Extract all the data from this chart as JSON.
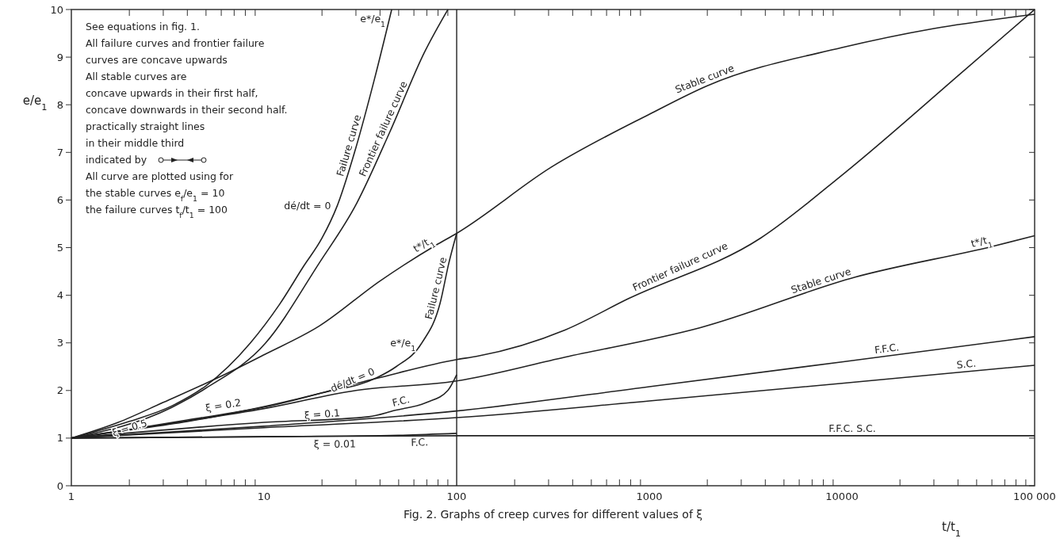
{
  "chart_data": {
    "type": "line",
    "title": "Fig. 2. Graphs of creep curves for different values of ξ",
    "xlabel": "t/t$_{1}$",
    "ylabel": "e/e$_{1}$",
    "log": "x",
    "grid": false,
    "legend": false,
    "xlim": [
      1,
      100000
    ],
    "ylim": [
      0,
      10
    ],
    "xticks": [
      1,
      {
        "value": 2,
        "label": null
      },
      {
        "value": 3,
        "label": null
      },
      {
        "value": 4,
        "label": null
      },
      {
        "value": 5,
        "label": null
      },
      {
        "value": 6,
        "label": null
      },
      {
        "value": 7,
        "label": null
      },
      {
        "value": 8,
        "label": null
      },
      {
        "value": 9,
        "label": null
      },
      10,
      {
        "value": 20,
        "label": null
      },
      {
        "value": 30,
        "label": null
      },
      {
        "value": 40,
        "label": null
      },
      {
        "value": 50,
        "label": null
      },
      {
        "value": 60,
        "label": null
      },
      {
        "value": 70,
        "label": null
      },
      {
        "value": 80,
        "label": null
      },
      {
        "value": 90,
        "label": null
      },
      100,
      {
        "value": 200,
        "label": null
      },
      {
        "value": 300,
        "label": null
      },
      {
        "value": 400,
        "label": null
      },
      {
        "value": 500,
        "label": null
      },
      {
        "value": 600,
        "label": null
      },
      {
        "value": 700,
        "label": null
      },
      {
        "value": 800,
        "label": null
      },
      {
        "value": 900,
        "label": null
      },
      1000,
      {
        "value": 2000,
        "label": null
      },
      {
        "value": 3000,
        "label": null
      },
      {
        "value": 4000,
        "label": null
      },
      {
        "value": 5000,
        "label": null
      },
      {
        "value": 6000,
        "label": null
      },
      {
        "value": 7000,
        "label": null
      },
      {
        "value": 8000,
        "label": null
      },
      {
        "value": 9000,
        "label": null
      },
      10000,
      {
        "value": 20000,
        "label": null
      },
      {
        "value": 30000,
        "label": null
      },
      {
        "value": 40000,
        "label": null
      },
      {
        "value": 50000,
        "label": null
      },
      {
        "value": 60000,
        "label": null
      },
      {
        "value": 70000,
        "label": null
      },
      {
        "value": 80000,
        "label": null
      },
      {
        "value": 90000,
        "label": null
      },
      {
        "value": 100000,
        "label": "100 000"
      }
    ],
    "yticks": [
      0,
      1,
      2,
      3,
      4,
      5,
      6,
      7,
      8,
      9,
      10
    ],
    "ref_lines": [
      {
        "axis": "x",
        "value": 100,
        "color": "#222222"
      }
    ],
    "series": [
      {
        "color": "#222222",
        "x": [
          1,
          2,
          3.3,
          5,
          8.5,
          12,
          16,
          20,
          24,
          30,
          37.5,
          46
        ],
        "values": [
          1,
          1.35,
          1.67,
          2.1,
          3.0,
          3.8,
          4.6,
          5.2,
          5.88,
          7.1,
          8.55,
          10
        ]
      },
      {
        "color": "#222222",
        "x": [
          1,
          3.3,
          5,
          10.2,
          19.3,
          30,
          45,
          68,
          90
        ],
        "values": [
          1,
          1.64,
          2.05,
          3.0,
          4.67,
          5.9,
          7.43,
          9.1,
          10
        ]
      },
      {
        "color": "#222222",
        "x": [
          1,
          1.75,
          3,
          6.2,
          10,
          19.3,
          40,
          78,
          100,
          310,
          1000,
          2000,
          10000,
          30000,
          100000
        ],
        "values": [
          1,
          1.33,
          1.75,
          2.33,
          2.75,
          3.35,
          4.3,
          5.05,
          5.3,
          6.69,
          7.8,
          8.4,
          9.2,
          9.6,
          9.9
        ]
      },
      {
        "color": "#222222",
        "x": [
          1,
          2,
          4,
          8.5,
          20,
          38.6,
          48.5,
          66,
          82,
          91,
          100
        ],
        "values": [
          1,
          1.17,
          1.35,
          1.6,
          1.95,
          2.27,
          2.5,
          3.0,
          3.83,
          4.67,
          5.3
        ]
      },
      {
        "color": "#222222",
        "x": [
          1,
          2,
          4,
          10,
          38,
          100,
          128,
          365,
          780,
          3780,
          10200,
          42500,
          100000
        ],
        "values": [
          1,
          1.18,
          1.38,
          1.65,
          2.25,
          2.65,
          2.72,
          3.27,
          3.93,
          5.2,
          6.55,
          8.7,
          10
        ]
      },
      {
        "color": "#222222",
        "x": [
          1,
          2,
          4,
          10,
          30,
          100,
          365,
          1840,
          11700,
          60900,
          100000
        ],
        "values": [
          1,
          1.18,
          1.36,
          1.62,
          2.0,
          2.2,
          2.7,
          3.32,
          4.38,
          5.03,
          5.25
        ]
      },
      {
        "color": "#222222",
        "x": [
          1,
          10,
          35,
          47.5,
          70,
          90,
          100
        ],
        "values": [
          1,
          1.33,
          1.45,
          1.58,
          1.75,
          2.0,
          2.33
        ]
      },
      {
        "color": "#222222",
        "x": [
          1,
          10,
          100,
          1000,
          10000,
          100000
        ],
        "values": [
          1,
          1.25,
          1.57,
          2.08,
          2.6,
          3.13
        ]
      },
      {
        "color": "#222222",
        "x": [
          1,
          10,
          100,
          1000,
          10000,
          100000
        ],
        "values": [
          1,
          1.22,
          1.43,
          1.78,
          2.15,
          2.53
        ]
      },
      {
        "color": "#222222",
        "x": [
          1,
          10,
          50,
          100
        ],
        "values": [
          1,
          1.03,
          1.06,
          1.1
        ]
      },
      {
        "color": "#222222",
        "x": [
          1,
          10,
          100,
          1000,
          100000
        ],
        "values": [
          1,
          1.03,
          1.05,
          1.05,
          1.05
        ]
      }
    ],
    "annotations": [
      "See equations in fig. 1.",
      "All failure curves and frontier failure",
      "curves are concave upwards",
      "All stable curves are",
      "concave upwards in their first half,",
      "concave downwards in their second half.",
      "practically straight lines",
      "in their middle third",
      "indicated by",
      "All curve are plotted using for",
      "the stable curves e$_{f}$/e$_{1}$ = 10",
      "the failure curves t$_{f}$/t$_{1}$ = 100",
      {
        "text": "ξ = 0.5",
        "x": 2.4,
        "y": 1.48
      },
      {
        "text": "ξ = 0.2",
        "x": 7.7,
        "y": 1.6
      },
      {
        "text": "ξ = 0.1",
        "x": 25,
        "y": 1.38
      },
      {
        "text": "ξ = 0.01",
        "x": 30,
        "y": 1.04
      },
      {
        "text": "Failure curve",
        "x": 30,
        "y": 7.1
      },
      {
        "text": "Frontier failure curve",
        "x": 45,
        "y": 7.43
      },
      {
        "text": "Stable curve",
        "x": 2000,
        "y": 8.4
      },
      {
        "text": "Frontier failure curve",
        "x": 1500,
        "y": 4.46
      },
      {
        "text": "Stable curve",
        "x": 8000,
        "y": 4.16
      },
      {
        "text": "Failure curve",
        "x": 85,
        "y": 4.11
      },
      {
        "text": "F.F.C.",
        "x": 20000,
        "y": 2.76
      },
      {
        "text": "S.C.",
        "x": 50000,
        "y": 2.42
      },
      {
        "text": "F.F.C. S.C.",
        "x": 15000,
        "y": 1.05
      },
      {
        "text": "F.C.",
        "x": 58,
        "y": 1.67
      },
      {
        "text": "F.C.",
        "x": 71,
        "y": 1.08
      },
      {
        "text": "e*/e$_{1}$",
        "x": 46,
        "y": 10
      },
      {
        "text": "e*/e$_{1}$",
        "x": 66,
        "y": 3.0
      },
      {
        "text": "t*/t$_{1}$",
        "x": 78,
        "y": 5.05
      },
      {
        "text": "t*/t$_{1}$",
        "x": 60900,
        "y": 5.03
      },
      {
        "text": "dé/dt = 0",
        "x": 24,
        "y": 5.88
      },
      {
        "text": "dé/dt = 0",
        "x": 38.6,
        "y": 2.27
      }
    ]
  }
}
